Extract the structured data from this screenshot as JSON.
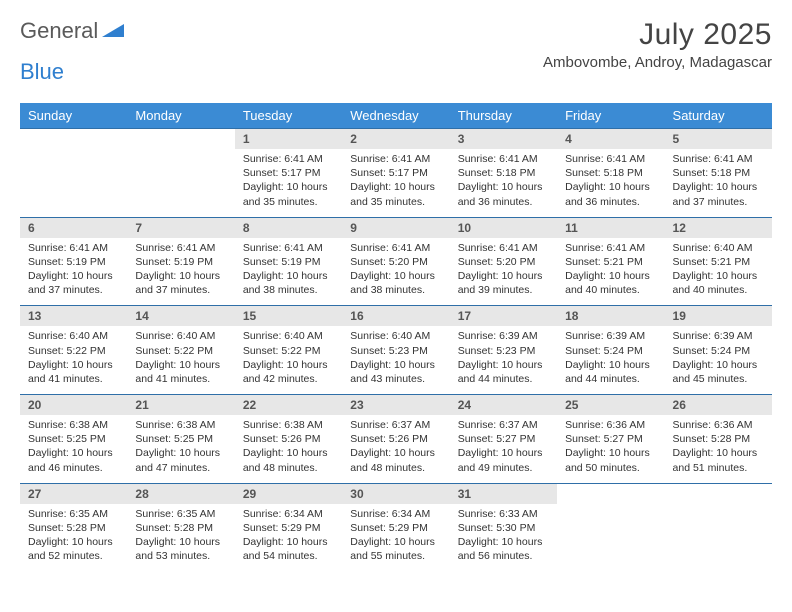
{
  "brand": {
    "part1": "General",
    "part2": "Blue"
  },
  "title": "July 2025",
  "location": "Ambovombe, Androy, Madagascar",
  "colors": {
    "header_bg": "#3b8bd4",
    "header_text": "#ffffff",
    "daynum_bg": "#e7e7e7",
    "border": "#2f6fa8",
    "logo_blue": "#2f7fcf",
    "logo_gray": "#5a5a5a"
  },
  "weekdays": [
    "Sunday",
    "Monday",
    "Tuesday",
    "Wednesday",
    "Thursday",
    "Friday",
    "Saturday"
  ],
  "weeks": [
    [
      null,
      null,
      {
        "n": "1",
        "sr": "6:41 AM",
        "ss": "5:17 PM",
        "dl": "10 hours and 35 minutes."
      },
      {
        "n": "2",
        "sr": "6:41 AM",
        "ss": "5:17 PM",
        "dl": "10 hours and 35 minutes."
      },
      {
        "n": "3",
        "sr": "6:41 AM",
        "ss": "5:18 PM",
        "dl": "10 hours and 36 minutes."
      },
      {
        "n": "4",
        "sr": "6:41 AM",
        "ss": "5:18 PM",
        "dl": "10 hours and 36 minutes."
      },
      {
        "n": "5",
        "sr": "6:41 AM",
        "ss": "5:18 PM",
        "dl": "10 hours and 37 minutes."
      }
    ],
    [
      {
        "n": "6",
        "sr": "6:41 AM",
        "ss": "5:19 PM",
        "dl": "10 hours and 37 minutes."
      },
      {
        "n": "7",
        "sr": "6:41 AM",
        "ss": "5:19 PM",
        "dl": "10 hours and 37 minutes."
      },
      {
        "n": "8",
        "sr": "6:41 AM",
        "ss": "5:19 PM",
        "dl": "10 hours and 38 minutes."
      },
      {
        "n": "9",
        "sr": "6:41 AM",
        "ss": "5:20 PM",
        "dl": "10 hours and 38 minutes."
      },
      {
        "n": "10",
        "sr": "6:41 AM",
        "ss": "5:20 PM",
        "dl": "10 hours and 39 minutes."
      },
      {
        "n": "11",
        "sr": "6:41 AM",
        "ss": "5:21 PM",
        "dl": "10 hours and 40 minutes."
      },
      {
        "n": "12",
        "sr": "6:40 AM",
        "ss": "5:21 PM",
        "dl": "10 hours and 40 minutes."
      }
    ],
    [
      {
        "n": "13",
        "sr": "6:40 AM",
        "ss": "5:22 PM",
        "dl": "10 hours and 41 minutes."
      },
      {
        "n": "14",
        "sr": "6:40 AM",
        "ss": "5:22 PM",
        "dl": "10 hours and 41 minutes."
      },
      {
        "n": "15",
        "sr": "6:40 AM",
        "ss": "5:22 PM",
        "dl": "10 hours and 42 minutes."
      },
      {
        "n": "16",
        "sr": "6:40 AM",
        "ss": "5:23 PM",
        "dl": "10 hours and 43 minutes."
      },
      {
        "n": "17",
        "sr": "6:39 AM",
        "ss": "5:23 PM",
        "dl": "10 hours and 44 minutes."
      },
      {
        "n": "18",
        "sr": "6:39 AM",
        "ss": "5:24 PM",
        "dl": "10 hours and 44 minutes."
      },
      {
        "n": "19",
        "sr": "6:39 AM",
        "ss": "5:24 PM",
        "dl": "10 hours and 45 minutes."
      }
    ],
    [
      {
        "n": "20",
        "sr": "6:38 AM",
        "ss": "5:25 PM",
        "dl": "10 hours and 46 minutes."
      },
      {
        "n": "21",
        "sr": "6:38 AM",
        "ss": "5:25 PM",
        "dl": "10 hours and 47 minutes."
      },
      {
        "n": "22",
        "sr": "6:38 AM",
        "ss": "5:26 PM",
        "dl": "10 hours and 48 minutes."
      },
      {
        "n": "23",
        "sr": "6:37 AM",
        "ss": "5:26 PM",
        "dl": "10 hours and 48 minutes."
      },
      {
        "n": "24",
        "sr": "6:37 AM",
        "ss": "5:27 PM",
        "dl": "10 hours and 49 minutes."
      },
      {
        "n": "25",
        "sr": "6:36 AM",
        "ss": "5:27 PM",
        "dl": "10 hours and 50 minutes."
      },
      {
        "n": "26",
        "sr": "6:36 AM",
        "ss": "5:28 PM",
        "dl": "10 hours and 51 minutes."
      }
    ],
    [
      {
        "n": "27",
        "sr": "6:35 AM",
        "ss": "5:28 PM",
        "dl": "10 hours and 52 minutes."
      },
      {
        "n": "28",
        "sr": "6:35 AM",
        "ss": "5:28 PM",
        "dl": "10 hours and 53 minutes."
      },
      {
        "n": "29",
        "sr": "6:34 AM",
        "ss": "5:29 PM",
        "dl": "10 hours and 54 minutes."
      },
      {
        "n": "30",
        "sr": "6:34 AM",
        "ss": "5:29 PM",
        "dl": "10 hours and 55 minutes."
      },
      {
        "n": "31",
        "sr": "6:33 AM",
        "ss": "5:30 PM",
        "dl": "10 hours and 56 minutes."
      },
      null,
      null
    ]
  ],
  "labels": {
    "sunrise": "Sunrise:",
    "sunset": "Sunset:",
    "daylight": "Daylight:"
  }
}
